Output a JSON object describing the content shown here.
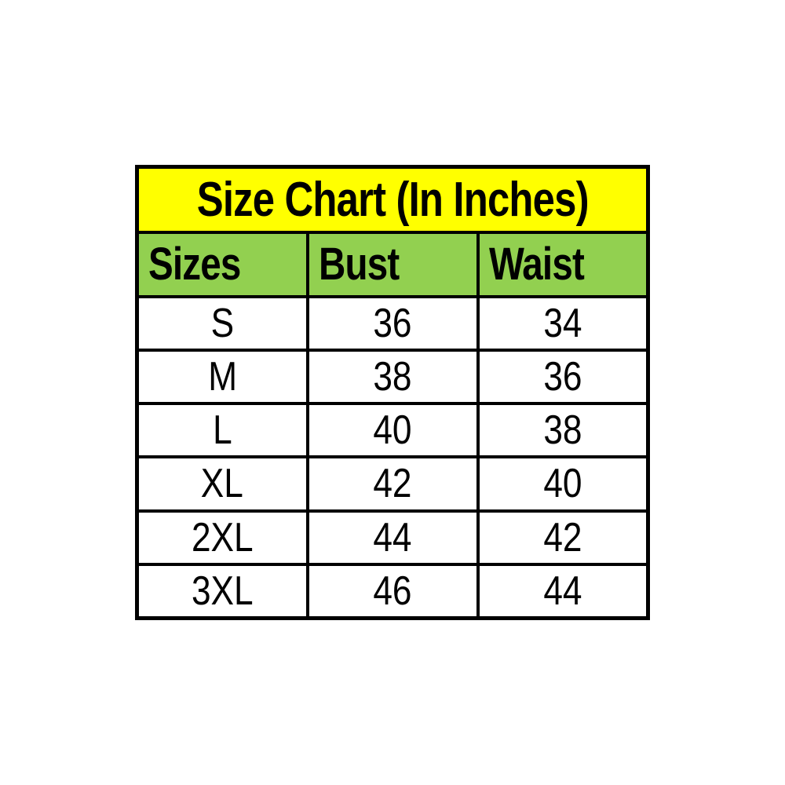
{
  "title": {
    "label": "Size Chart (In Inches)"
  },
  "header": {
    "columns": [
      "Sizes",
      "Bust",
      "Waist"
    ]
  },
  "rows": [
    {
      "cells": [
        "S",
        "36",
        "34"
      ]
    },
    {
      "cells": [
        "M",
        "38",
        "36"
      ]
    },
    {
      "cells": [
        "L",
        "40",
        "38"
      ]
    },
    {
      "cells": [
        "XL",
        "42",
        "40"
      ]
    },
    {
      "cells": [
        "2XL",
        "44",
        "42"
      ]
    },
    {
      "cells": [
        "3XL",
        "46",
        "44"
      ]
    }
  ],
  "colors": {
    "title_bg": "#ffff00",
    "header_bg": "#92d050",
    "border": "#000000",
    "text": "#000000",
    "page_bg": "#ffffff"
  },
  "chart_data": {
    "type": "table",
    "title": "Size Chart (In Inches)",
    "columns": [
      "Sizes",
      "Bust",
      "Waist"
    ],
    "rows": [
      [
        "S",
        36,
        34
      ],
      [
        "M",
        38,
        36
      ],
      [
        "L",
        40,
        38
      ],
      [
        "XL",
        42,
        40
      ],
      [
        "2XL",
        44,
        42
      ],
      [
        "3XL",
        46,
        44
      ]
    ],
    "units": "inches"
  }
}
